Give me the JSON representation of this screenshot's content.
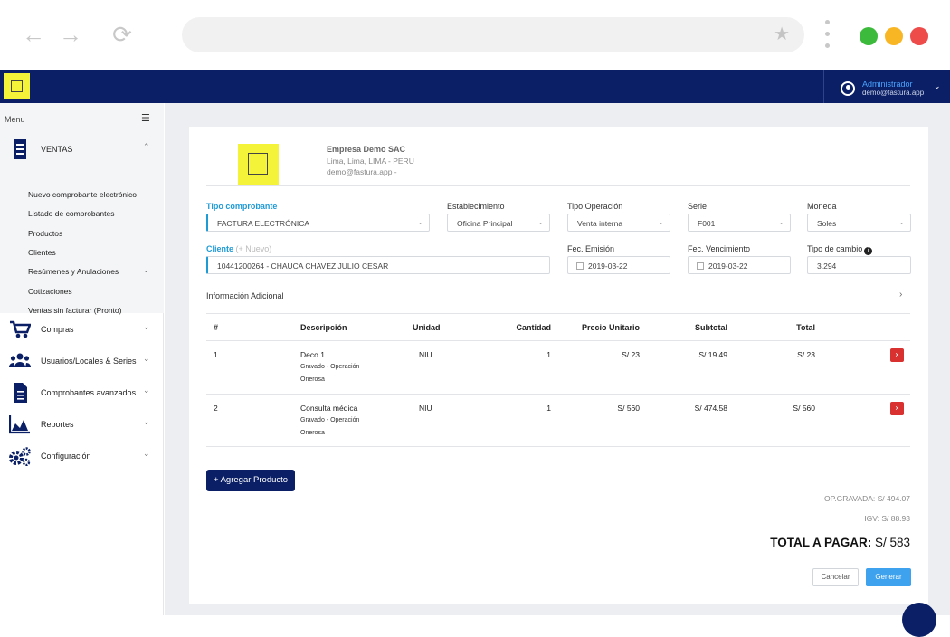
{
  "browser": {
    "back_icon": "arrow-left-icon",
    "forward_icon": "arrow-right-icon",
    "reload_icon": "reload-icon",
    "bookmark_icon": "star-icon",
    "window_controls": {
      "green": "#3cba3c",
      "yellow": "#f9b624",
      "red": "#ee4b4b"
    }
  },
  "header": {
    "logo_icon": "house-logo-icon",
    "user_name": "Administrador",
    "user_email": "demo@fastura.app",
    "brand_color": "#0a1f66"
  },
  "sidebar": {
    "menu_label": "Menu",
    "sections": [
      {
        "label": "VENTAS",
        "icon": "receipt-icon"
      },
      {
        "label": "Compras",
        "icon": "cart-icon"
      },
      {
        "label": "Usuarios/Locales & Series",
        "icon": "users-icon"
      },
      {
        "label": "Comprobantes avanzados",
        "icon": "document-icon"
      },
      {
        "label": "Reportes",
        "icon": "area-chart-icon"
      },
      {
        "label": "Configuración",
        "icon": "gears-icon"
      }
    ],
    "ventas_items": [
      "Nuevo comprobante electrónico",
      "Listado de comprobantes",
      "Productos",
      "Clientes",
      "Resúmenes y Anulaciones",
      "Cotizaciones",
      "Ventas sin facturar (Pronto)"
    ]
  },
  "company": {
    "name": "Empresa Demo SAC",
    "address": "Lima, Lima, LIMA - PERU",
    "email": "demo@fastura.app -"
  },
  "form": {
    "tipo_comprobante": {
      "label": "Tipo comprobante",
      "value": "FACTURA ELECTRÓNICA"
    },
    "establecimiento": {
      "label": "Establecimiento",
      "value": "Oficina Principal"
    },
    "tipo_operacion": {
      "label": "Tipo Operación",
      "value": "Venta interna"
    },
    "serie": {
      "label": "Serie",
      "value": "F001"
    },
    "moneda": {
      "label": "Moneda",
      "value": "Soles"
    },
    "cliente": {
      "label": "Cliente",
      "hint": "(+ Nuevo)",
      "value": "10441200264 - CHAUCA CHAVEZ JULIO CESAR"
    },
    "fec_emision": {
      "label": "Fec. Emisión",
      "value": "2019-03-22"
    },
    "fec_vencimiento": {
      "label": "Fec. Vencimiento",
      "value": "2019-03-22"
    },
    "tipo_cambio": {
      "label": "Tipo de cambio",
      "value": "3.294"
    },
    "info_adicional": "Información Adicional"
  },
  "table": {
    "headers": [
      "#",
      "Descripción",
      "Unidad",
      "Cantidad",
      "Precio Unitario",
      "Subtotal",
      "Total"
    ],
    "rows": [
      {
        "n": "1",
        "desc": "Deco 1",
        "sub1": "Gravado - Operación",
        "sub2": "Onerosa",
        "unidad": "NIU",
        "cantidad": "1",
        "precio": "S/ 23",
        "subtotal": "S/ 19.49",
        "total": "S/ 23",
        "delete": "x"
      },
      {
        "n": "2",
        "desc": "Consulta médica",
        "sub1": "Gravado - Operación",
        "sub2": "Onerosa",
        "unidad": "NIU",
        "cantidad": "1",
        "precio": "S/ 560",
        "subtotal": "S/ 474.58",
        "total": "S/ 560",
        "delete": "x"
      }
    ]
  },
  "actions": {
    "add_product": "+ Agregar Producto",
    "cancel": "Cancelar",
    "generate": "Generar"
  },
  "totals": {
    "gravada": "OP.GRAVADA: S/ 494.07",
    "igv": "IGV: S/ 88.93",
    "total_label": "TOTAL A PAGAR:",
    "total_value": "S/ 583"
  }
}
